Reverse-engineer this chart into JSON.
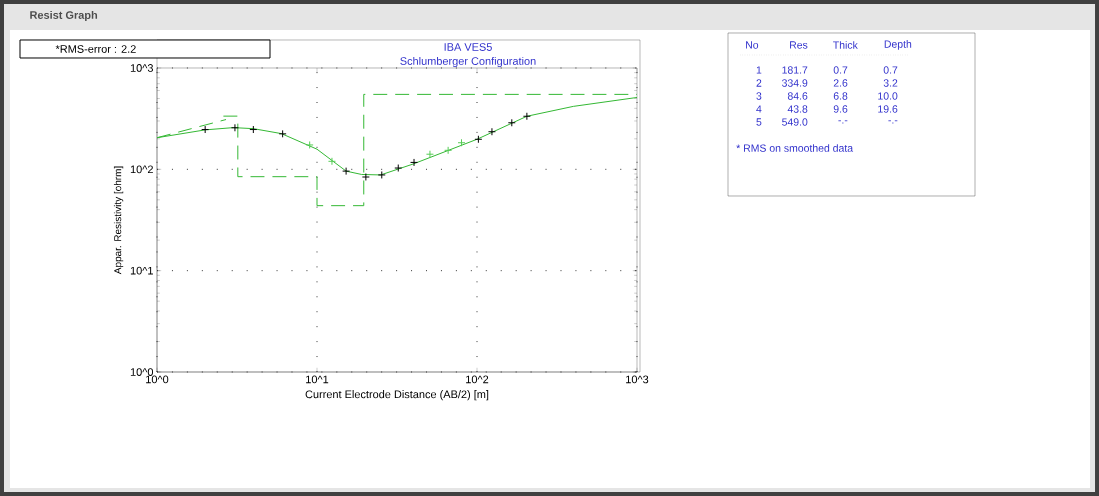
{
  "chart_data": {
    "type": "line",
    "title": "IBA VES5",
    "subtitle": "Schlumberger Configuration",
    "xlabel": "Current Electrode Distance (AB/2) [m]",
    "ylabel": "Appar. Resistivity [ohrm]",
    "log": "xy",
    "grid": true,
    "xlim": [
      1,
      1000
    ],
    "ylim": [
      1,
      1000
    ],
    "xticks": [
      {
        "value": 1,
        "label": "10^0"
      },
      {
        "value": 10,
        "label": "10^1"
      },
      {
        "value": 100,
        "label": "10^2"
      },
      {
        "value": 1000,
        "label": "10^3"
      }
    ],
    "yticks": [
      {
        "value": 1,
        "label": "10^0"
      },
      {
        "value": 10,
        "label": "10^1"
      },
      {
        "value": 100,
        "label": "10^2"
      },
      {
        "value": 1000,
        "label": "10^3"
      }
    ],
    "series": [
      {
        "type": "step",
        "color": "#33b833",
        "line_style": "dashed",
        "marker": "none",
        "x": [
          2.6,
          3.2,
          10,
          19.6,
          1000
        ],
        "values": [
          334.9,
          84.6,
          43.8,
          549,
          549
        ]
      },
      {
        "type": "line",
        "color": "#33b833",
        "line_style": "dashed",
        "marker": "none",
        "x": [
          1,
          2.7
        ],
        "values": [
          205,
          310
        ]
      },
      {
        "color": "#33b833",
        "line_style": "solid",
        "marker": "none",
        "x": [
          1,
          2,
          3,
          4,
          6,
          10,
          15.2,
          19,
          25,
          40,
          100,
          205,
          400,
          1000
        ],
        "values": [
          205,
          245,
          258,
          252,
          225,
          158,
          96,
          89,
          88,
          113,
          198,
          334,
          418,
          512
        ]
      },
      {
        "type": "scatter",
        "color": "#55cc55",
        "marker": "cross",
        "x": [
          9.0,
          12.4,
          50.8,
          66,
          80
        ],
        "values": [
          174,
          120,
          141,
          154,
          183
        ]
      },
      {
        "type": "scatter",
        "color": "#000000",
        "marker": "cross",
        "x": [
          2.0,
          3.07,
          4.0,
          6.1,
          15.2,
          20.2,
          25.4,
          32.2,
          40.4,
          102,
          124,
          165,
          205
        ],
        "values": [
          247,
          257,
          247,
          224,
          96,
          84,
          88,
          103,
          117,
          198,
          235,
          288,
          334
        ]
      }
    ],
    "annotations": [
      "Resist Graph",
      "*RMS-error :  2.2",
      "No",
      "Res",
      "Thick",
      "Depth",
      "1",
      "181.7",
      "0.7",
      "0.7",
      "2",
      "334.9",
      "2.6",
      "3.2",
      "3",
      "84.6",
      "6.8",
      "10.0",
      "4",
      "43.8",
      "9.6",
      "19.6",
      "5",
      "549.0",
      "-.-",
      "-.-",
      "* RMS on smoothed data"
    ]
  }
}
